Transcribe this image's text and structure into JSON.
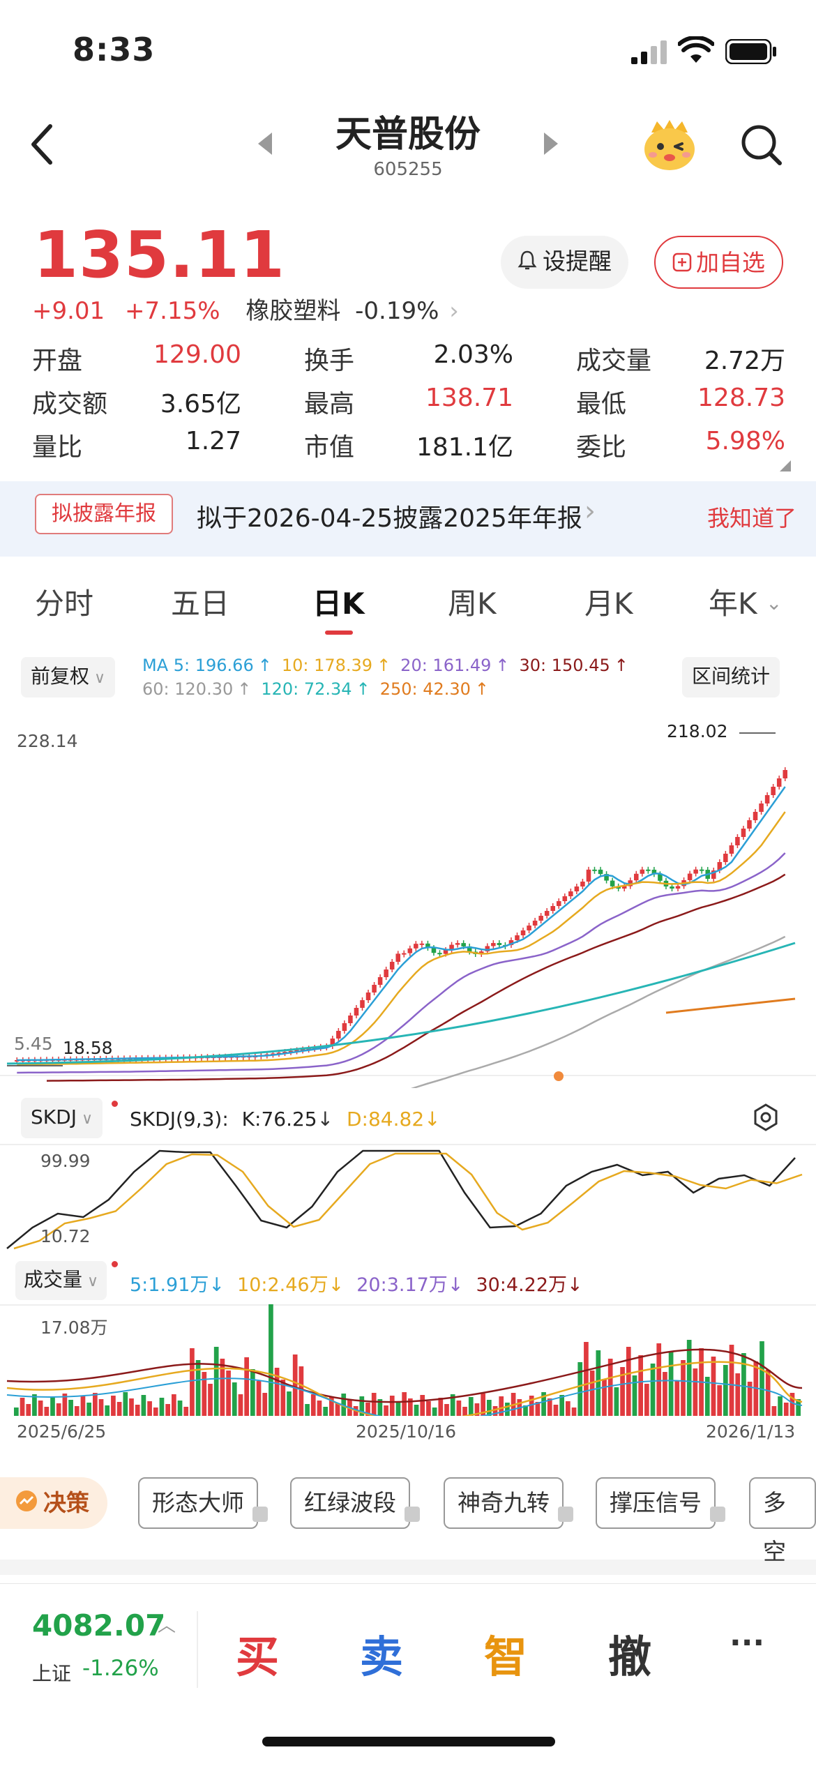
{
  "status_bar": {
    "time": "8:33"
  },
  "nav": {
    "title": "天普股份",
    "code": "605255",
    "back_icon": "chevron-left",
    "prev_icon": "triangle-left",
    "next_icon": "triangle-right",
    "mascot_icon": "mascot",
    "search_icon": "search"
  },
  "quote": {
    "price": "135.11",
    "change": "+9.01",
    "change_pct": "+7.15%",
    "sector": "橡胶塑料",
    "sector_pct": "-0.19%",
    "alert_label": "设提醒",
    "watch_label": "加自选"
  },
  "metrics": [
    {
      "label": "开盘",
      "value": "129.00",
      "color": "#e03a3e"
    },
    {
      "label": "换手",
      "value": "2.03%",
      "color": "#222222"
    },
    {
      "label": "成交量",
      "value": "2.72万",
      "color": "#222222"
    },
    {
      "label": "成交额",
      "value": "3.65亿",
      "color": "#222222"
    },
    {
      "label": "最高",
      "value": "138.71",
      "color": "#e03a3e"
    },
    {
      "label": "最低",
      "value": "128.73",
      "color": "#e03a3e"
    },
    {
      "label": "量比",
      "value": "1.27",
      "color": "#222222"
    },
    {
      "label": "市值",
      "value": "181.1亿",
      "color": "#222222"
    },
    {
      "label": "委比",
      "value": "5.98%",
      "color": "#e03a3e"
    }
  ],
  "banner": {
    "tag": "拟披露年报",
    "text": "拟于2026-04-25披露2025年年报",
    "dismiss": "我知道了"
  },
  "tabs": [
    "分时",
    "五日",
    "日K",
    "周K",
    "月K",
    "年K"
  ],
  "active_tab": "日K",
  "chart": {
    "adjust_label": "前复权",
    "range_stats": "区间统计",
    "ma_legend": [
      {
        "text": "MA 5: 196.66",
        "color": "#2b9fd6"
      },
      {
        "text": "10: 178.39",
        "color": "#e6a91f"
      },
      {
        "text": "20: 161.49",
        "color": "#8a63c9"
      },
      {
        "text": "30: 150.45",
        "color": "#8b1a1a"
      },
      {
        "text": "60: 120.30",
        "color": "#999999"
      },
      {
        "text": "120: 72.34",
        "color": "#27b5b5"
      },
      {
        "text": "250: 42.30",
        "color": "#e07b1e"
      }
    ],
    "price_top": "228.14",
    "price_max_label": "218.02",
    "price_min_label": "18.58",
    "price_left_label": "5.45",
    "skdj": {
      "label": "SKDJ",
      "params": "SKDJ(9,3):",
      "k": "K:76.25",
      "d": "D:84.82",
      "top": "99.99",
      "bottom": "10.72"
    },
    "volume": {
      "label": "成交量",
      "legend": [
        {
          "text": "5:1.91万",
          "color": "#2b9fd6"
        },
        {
          "text": "10:2.46万",
          "color": "#e6a91f"
        },
        {
          "text": "20:3.17万",
          "color": "#8a63c9"
        },
        {
          "text": "30:4.22万",
          "color": "#8b1a1a"
        }
      ],
      "top": "17.08万"
    },
    "dates": [
      "2025/6/25",
      "2025/10/16",
      "2026/1/13"
    ]
  },
  "strategy": {
    "label": "决策",
    "chips": [
      "形态大师",
      "红绿波段",
      "神奇九转",
      "撑压信号",
      "多空"
    ]
  },
  "bottom": {
    "index_value": "4082.07",
    "index_name": "上证",
    "index_pct": "-1.26%",
    "buy": "买",
    "sell": "卖",
    "smart": "智",
    "cancel": "撤",
    "more": "···"
  }
}
